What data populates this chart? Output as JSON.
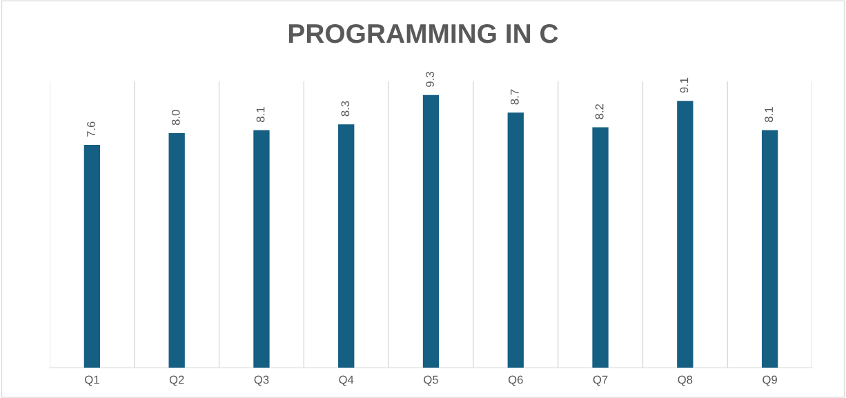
{
  "chart_data": {
    "type": "bar",
    "title": "PROGRAMMING IN C",
    "categories": [
      "Q1",
      "Q2",
      "Q3",
      "Q4",
      "Q5",
      "Q6",
      "Q7",
      "Q8",
      "Q9"
    ],
    "values": [
      7.6,
      8.0,
      8.1,
      8.3,
      9.3,
      8.7,
      8.2,
      9.1,
      8.1
    ],
    "value_labels": [
      "7.6",
      "8.0",
      "8.1",
      "8.3",
      "9.3",
      "8.7",
      "8.2",
      "9.1",
      "8.1"
    ],
    "color": "#155f83",
    "grid": "x",
    "legend": false
  }
}
